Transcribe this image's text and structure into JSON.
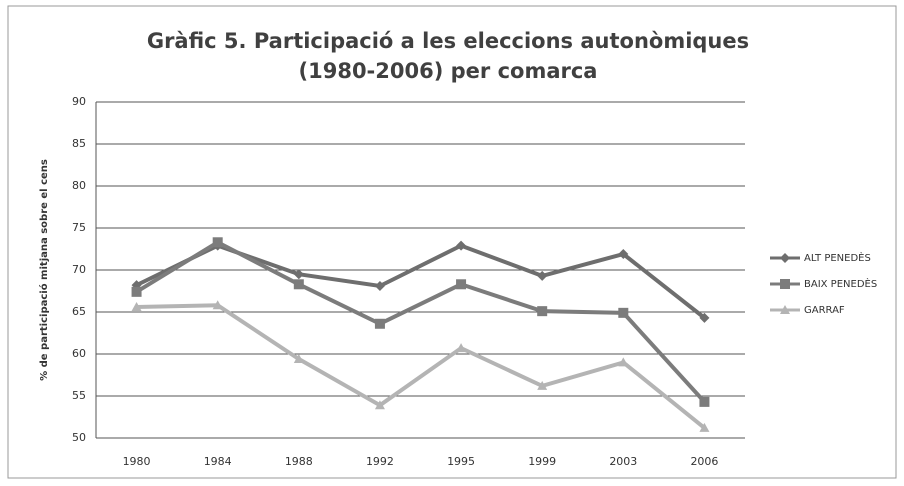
{
  "chart_data": {
    "type": "line",
    "title": [
      "Gràfic 5. Participació a les eleccions autonòmiques",
      "(1980-2006) per comarca"
    ],
    "y_label": "% de participació mitjana sobre el cens",
    "categories": [
      "1980",
      "1984",
      "1988",
      "1992",
      "1995",
      "1999",
      "2003",
      "2006"
    ],
    "series": [
      {
        "name": "ALT PENEDÈS",
        "color": "#6e6e6e",
        "values": [
          68.2,
          72.9,
          69.5,
          68.1,
          72.9,
          69.3,
          71.9,
          64.3
        ]
      },
      {
        "name": "BAIX PENEDÈS",
        "color": "#7c7c7c",
        "values": [
          67.4,
          73.3,
          68.3,
          63.6,
          68.3,
          65.1,
          64.9,
          54.3
        ]
      },
      {
        "name": "GARRAF",
        "color": "#b4b4b4",
        "values": [
          65.6,
          65.8,
          59.4,
          53.9,
          60.7,
          56.2,
          59.0,
          51.2
        ]
      }
    ],
    "ylim": [
      50,
      90
    ],
    "yticks": [
      50,
      55,
      60,
      65,
      70,
      75,
      80,
      85,
      90
    ],
    "grid": true,
    "legend": "right"
  }
}
